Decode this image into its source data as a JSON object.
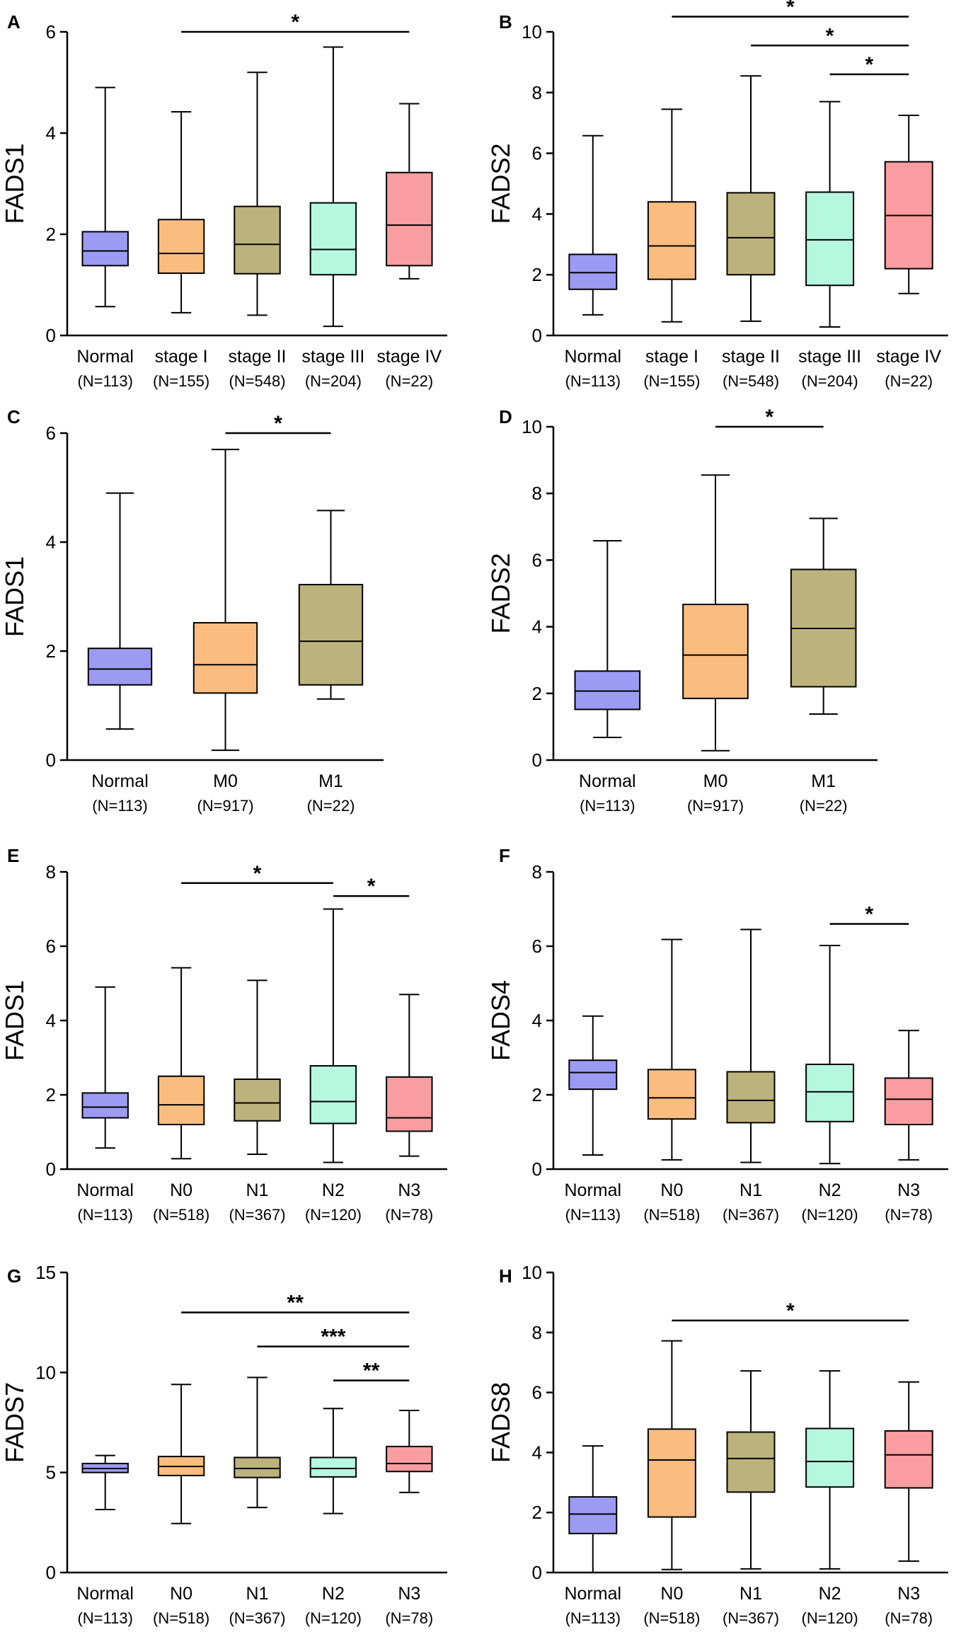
{
  "chart_data": [
    {
      "panel": "A",
      "type": "box",
      "ylabel": "FADS1",
      "ylim": [
        0,
        6
      ],
      "yticks": [
        0,
        2,
        4,
        6
      ],
      "categories": [
        "Normal",
        "stage I",
        "stage II",
        "stage III",
        "stage IV"
      ],
      "ns": [
        "(N=113)",
        "(N=155)",
        "(N=548)",
        "(N=204)",
        "(N=22)"
      ],
      "boxes": [
        {
          "min": 0.57,
          "q1": 1.38,
          "median": 1.67,
          "q3": 2.05,
          "max": 4.9
        },
        {
          "min": 0.45,
          "q1": 1.23,
          "median": 1.62,
          "q3": 2.29,
          "max": 4.42
        },
        {
          "min": 0.4,
          "q1": 1.22,
          "median": 1.8,
          "q3": 2.55,
          "max": 5.2
        },
        {
          "min": 0.18,
          "q1": 1.2,
          "median": 1.7,
          "q3": 2.62,
          "max": 5.7
        },
        {
          "min": 1.12,
          "q1": 1.38,
          "median": 2.18,
          "q3": 3.22,
          "max": 4.58
        }
      ],
      "significance": [
        {
          "from": 1,
          "to": 4,
          "y": 6.0,
          "label": "*"
        }
      ]
    },
    {
      "panel": "B",
      "type": "box",
      "ylabel": "FADS2",
      "ylim": [
        0,
        10
      ],
      "yticks": [
        0,
        2,
        4,
        6,
        8,
        10
      ],
      "categories": [
        "Normal",
        "stage I",
        "stage II",
        "stage III",
        "stage IV"
      ],
      "ns": [
        "(N=113)",
        "(N=155)",
        "(N=548)",
        "(N=204)",
        "(N=22)"
      ],
      "boxes": [
        {
          "min": 0.68,
          "q1": 1.52,
          "median": 2.07,
          "q3": 2.67,
          "max": 6.58
        },
        {
          "min": 0.45,
          "q1": 1.85,
          "median": 2.95,
          "q3": 4.4,
          "max": 7.45
        },
        {
          "min": 0.47,
          "q1": 2.0,
          "median": 3.22,
          "q3": 4.7,
          "max": 8.55
        },
        {
          "min": 0.28,
          "q1": 1.65,
          "median": 3.15,
          "q3": 4.72,
          "max": 7.7
        },
        {
          "min": 1.38,
          "q1": 2.2,
          "median": 3.95,
          "q3": 5.72,
          "max": 7.25
        }
      ],
      "significance": [
        {
          "from": 1,
          "to": 4,
          "y": 10.5,
          "label": "*"
        },
        {
          "from": 2,
          "to": 4,
          "y": 9.55,
          "label": "*"
        },
        {
          "from": 3,
          "to": 4,
          "y": 8.6,
          "label": "*"
        }
      ]
    },
    {
      "panel": "C",
      "type": "box",
      "ylabel": "FADS1",
      "ylim": [
        0,
        6
      ],
      "yticks": [
        0,
        2,
        4,
        6
      ],
      "categories": [
        "Normal",
        "M0",
        "M1"
      ],
      "ns": [
        "(N=113)",
        "(N=917)",
        "(N=22)"
      ],
      "boxes": [
        {
          "min": 0.57,
          "q1": 1.38,
          "median": 1.67,
          "q3": 2.05,
          "max": 4.9
        },
        {
          "min": 0.18,
          "q1": 1.23,
          "median": 1.75,
          "q3": 2.52,
          "max": 5.7
        },
        {
          "min": 1.12,
          "q1": 1.38,
          "median": 2.18,
          "q3": 3.22,
          "max": 4.58
        }
      ],
      "significance": [
        {
          "from": 1,
          "to": 2,
          "y": 6.0,
          "label": "*"
        }
      ]
    },
    {
      "panel": "D",
      "type": "box",
      "ylabel": "FADS2",
      "ylim": [
        0,
        10
      ],
      "yticks": [
        0,
        2,
        4,
        6,
        8,
        10
      ],
      "categories": [
        "Normal",
        "M0",
        "M1"
      ],
      "ns": [
        "(N=113)",
        "(N=917)",
        "(N=22)"
      ],
      "boxes": [
        {
          "min": 0.68,
          "q1": 1.52,
          "median": 2.07,
          "q3": 2.67,
          "max": 6.58
        },
        {
          "min": 0.28,
          "q1": 1.85,
          "median": 3.15,
          "q3": 4.67,
          "max": 8.55
        },
        {
          "min": 1.38,
          "q1": 2.2,
          "median": 3.95,
          "q3": 5.72,
          "max": 7.25
        }
      ],
      "significance": [
        {
          "from": 1,
          "to": 2,
          "y": 10.0,
          "label": "*"
        }
      ]
    },
    {
      "panel": "E",
      "type": "box",
      "ylabel": "FADS1",
      "ylim": [
        0,
        8
      ],
      "yticks": [
        0,
        2,
        4,
        6,
        8
      ],
      "categories": [
        "Normal",
        "N0",
        "N1",
        "N2",
        "N3"
      ],
      "ns": [
        "(N=113)",
        "(N=518)",
        "(N=367)",
        "(N=120)",
        "(N=78)"
      ],
      "boxes": [
        {
          "min": 0.57,
          "q1": 1.38,
          "median": 1.67,
          "q3": 2.05,
          "max": 4.9
        },
        {
          "min": 0.28,
          "q1": 1.2,
          "median": 1.73,
          "q3": 2.5,
          "max": 5.42
        },
        {
          "min": 0.4,
          "q1": 1.3,
          "median": 1.78,
          "q3": 2.42,
          "max": 5.08
        },
        {
          "min": 0.18,
          "q1": 1.23,
          "median": 1.82,
          "q3": 2.78,
          "max": 7.0
        },
        {
          "min": 0.35,
          "q1": 1.02,
          "median": 1.38,
          "q3": 2.48,
          "max": 4.7
        }
      ],
      "significance": [
        {
          "from": 1,
          "to": 3,
          "y": 7.7,
          "label": "*"
        },
        {
          "from": 3,
          "to": 4,
          "y": 7.35,
          "label": "*"
        }
      ]
    },
    {
      "panel": "F",
      "type": "box",
      "ylabel": "FADS4",
      "ylim": [
        0,
        8
      ],
      "yticks": [
        0,
        2,
        4,
        6,
        8
      ],
      "categories": [
        "Normal",
        "N0",
        "N1",
        "N2",
        "N3"
      ],
      "ns": [
        "(N=113)",
        "(N=518)",
        "(N=367)",
        "(N=120)",
        "(N=78)"
      ],
      "boxes": [
        {
          "min": 0.38,
          "q1": 2.15,
          "median": 2.6,
          "q3": 2.93,
          "max": 4.12
        },
        {
          "min": 0.25,
          "q1": 1.35,
          "median": 1.92,
          "q3": 2.68,
          "max": 6.18
        },
        {
          "min": 0.18,
          "q1": 1.25,
          "median": 1.85,
          "q3": 2.62,
          "max": 6.45
        },
        {
          "min": 0.15,
          "q1": 1.28,
          "median": 2.08,
          "q3": 2.82,
          "max": 6.02
        },
        {
          "min": 0.25,
          "q1": 1.2,
          "median": 1.88,
          "q3": 2.45,
          "max": 3.73
        }
      ],
      "significance": [
        {
          "from": 3,
          "to": 4,
          "y": 6.6,
          "label": "*"
        }
      ]
    },
    {
      "panel": "G",
      "type": "box",
      "ylabel": "FADS7",
      "ylim": [
        0,
        15
      ],
      "yticks": [
        0,
        5,
        10,
        15
      ],
      "categories": [
        "Normal",
        "N0",
        "N1",
        "N2",
        "N3"
      ],
      "ns": [
        "(N=113)",
        "(N=518)",
        "(N=367)",
        "(N=120)",
        "(N=78)"
      ],
      "boxes": [
        {
          "min": 3.15,
          "q1": 5.0,
          "median": 5.2,
          "q3": 5.45,
          "max": 5.85
        },
        {
          "min": 2.45,
          "q1": 4.85,
          "median": 5.3,
          "q3": 5.8,
          "max": 9.4
        },
        {
          "min": 3.25,
          "q1": 4.75,
          "median": 5.2,
          "q3": 5.75,
          "max": 9.75
        },
        {
          "min": 2.95,
          "q1": 4.78,
          "median": 5.2,
          "q3": 5.75,
          "max": 8.2
        },
        {
          "min": 4.0,
          "q1": 5.05,
          "median": 5.45,
          "q3": 6.3,
          "max": 8.1
        }
      ],
      "significance": [
        {
          "from": 1,
          "to": 4,
          "y": 13.0,
          "label": "**"
        },
        {
          "from": 2,
          "to": 4,
          "y": 11.3,
          "label": "***"
        },
        {
          "from": 3,
          "to": 4,
          "y": 9.6,
          "label": "**"
        }
      ]
    },
    {
      "panel": "H",
      "type": "box",
      "ylabel": "FADS8",
      "ylim": [
        0,
        10
      ],
      "yticks": [
        0,
        2,
        4,
        6,
        8,
        10
      ],
      "categories": [
        "Normal",
        "N0",
        "N1",
        "N2",
        "N3"
      ],
      "ns": [
        "(N=113)",
        "(N=518)",
        "(N=367)",
        "(N=120)",
        "(N=78)"
      ],
      "boxes": [
        {
          "min": 0.0,
          "q1": 1.3,
          "median": 1.95,
          "q3": 2.52,
          "max": 4.22
        },
        {
          "min": 0.1,
          "q1": 1.85,
          "median": 3.75,
          "q3": 4.78,
          "max": 7.72
        },
        {
          "min": 0.12,
          "q1": 2.68,
          "median": 3.8,
          "q3": 4.68,
          "max": 6.72
        },
        {
          "min": 0.12,
          "q1": 2.85,
          "median": 3.7,
          "q3": 4.8,
          "max": 6.72
        },
        {
          "min": 0.38,
          "q1": 2.82,
          "median": 3.92,
          "q3": 4.72,
          "max": 6.35
        }
      ],
      "significance": [
        {
          "from": 1,
          "to": 4,
          "y": 8.4,
          "label": "*"
        }
      ]
    }
  ],
  "palette": {
    "Normal": "#9b9bf4",
    "stage I": "#fbbd7f",
    "stage II": "#bcb27b",
    "stage III": "#b6f7e0",
    "stage IV": "#fa9da0",
    "M0": "#fbbd7f",
    "M1": "#bcb27b",
    "N0": "#fbbd7f",
    "N1": "#bcb27b",
    "N2": "#b6f7e0",
    "N3": "#fa9da0"
  }
}
